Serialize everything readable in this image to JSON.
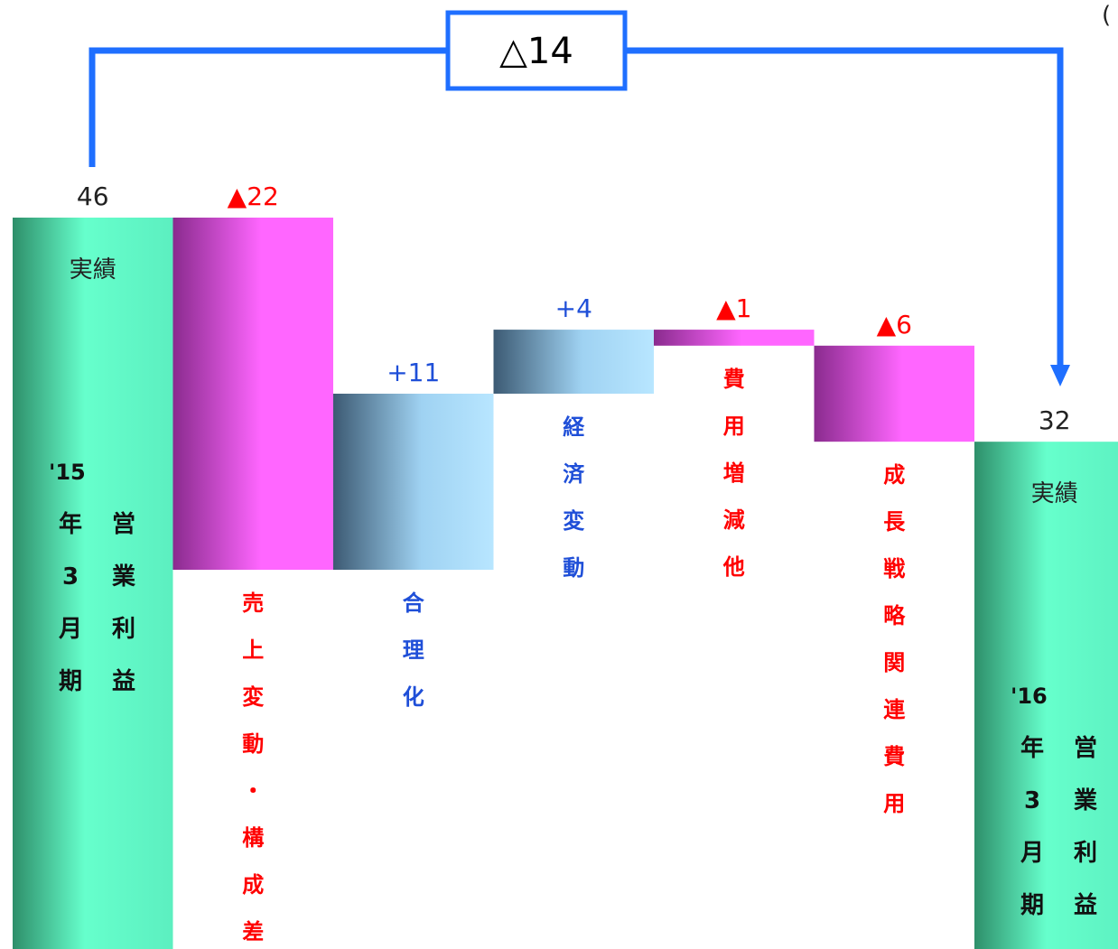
{
  "chart_data": {
    "type": "bar",
    "subtype": "waterfall",
    "categories": [
      "'15年3月期 営業利益",
      "売上変動・構成差",
      "合理化",
      "経済変動",
      "費用増減他",
      "成長戦略関連費用",
      "'16年3月期 営業利益"
    ],
    "values": [
      46,
      -22,
      11,
      4,
      -1,
      -6,
      32
    ],
    "kinds": [
      "total",
      "decrease",
      "increase",
      "increase",
      "decrease",
      "decrease",
      "total"
    ],
    "value_labels": [
      "46",
      "▲22",
      "+11",
      "+4",
      "▲1",
      "▲6",
      "32"
    ],
    "total_sublabels": [
      "実績",
      "実績"
    ],
    "total_labels": [
      {
        "year": "'15",
        "col1": [
          "年",
          "3",
          "月",
          "期"
        ],
        "col2": [
          "営",
          "業",
          "利",
          "益"
        ]
      },
      {
        "year": "'16",
        "col1": [
          "年",
          "3",
          "月",
          "期"
        ],
        "col2": [
          "営",
          "業",
          "利",
          "益"
        ]
      }
    ],
    "vertical_labels": [
      "売上変動・構成差",
      "合理化",
      "経済変動",
      "費用増減他",
      "成長戦略関連費用"
    ],
    "bracket_label": "△14",
    "corner_text": "(",
    "colors": {
      "total": "#66ffcc",
      "decrease": "#ff66ff",
      "increase": "#a9dcf7",
      "decrease_label": "#ff0000",
      "increase_label": "#1f4fd8",
      "bracket": "#1f6fff"
    },
    "ylim": [
      0,
      46
    ]
  }
}
